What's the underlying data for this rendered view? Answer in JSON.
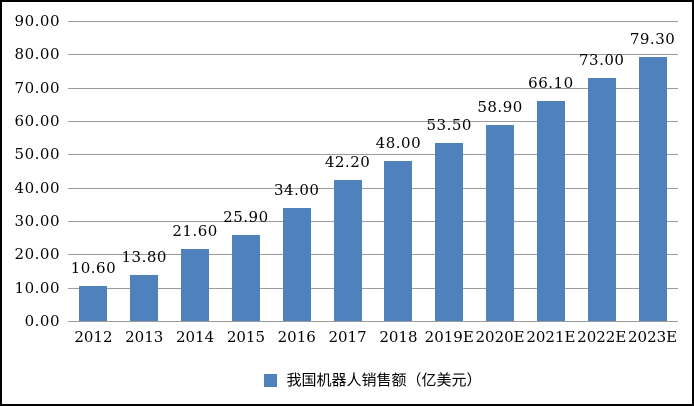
{
  "chart_data": {
    "type": "bar",
    "title": "",
    "xlabel": "",
    "ylabel": "",
    "categories": [
      "2012",
      "2013",
      "2014",
      "2015",
      "2016",
      "2017",
      "2018",
      "2019E",
      "2020E",
      "2021E",
      "2022E",
      "2023E"
    ],
    "values": [
      10.6,
      13.8,
      21.6,
      25.9,
      34.0,
      42.2,
      48.0,
      53.5,
      58.9,
      66.1,
      73.0,
      79.3
    ],
    "value_labels": [
      "10.60",
      "13.80",
      "21.60",
      "25.90",
      "34.00",
      "42.20",
      "48.00",
      "53.50",
      "58.90",
      "66.10",
      "73.00",
      "79.30"
    ],
    "series_name": "我国机器人销售额（亿美元）",
    "ylim": [
      0,
      90
    ],
    "ytick_step": 10,
    "ytick_labels": [
      "0.00",
      "10.00",
      "20.00",
      "30.00",
      "40.00",
      "50.00",
      "60.00",
      "70.00",
      "80.00",
      "90.00"
    ],
    "grid": "horizontal",
    "legend_position": "bottom-center",
    "colors": {
      "bar": "#4F81BD",
      "gridline": "#9B9B9B",
      "text": "#000000",
      "frame_border": "#000000",
      "background": "#FFFFFF"
    }
  },
  "legend": {
    "marker": "square",
    "label": "我国机器人销售额（亿美元）"
  }
}
